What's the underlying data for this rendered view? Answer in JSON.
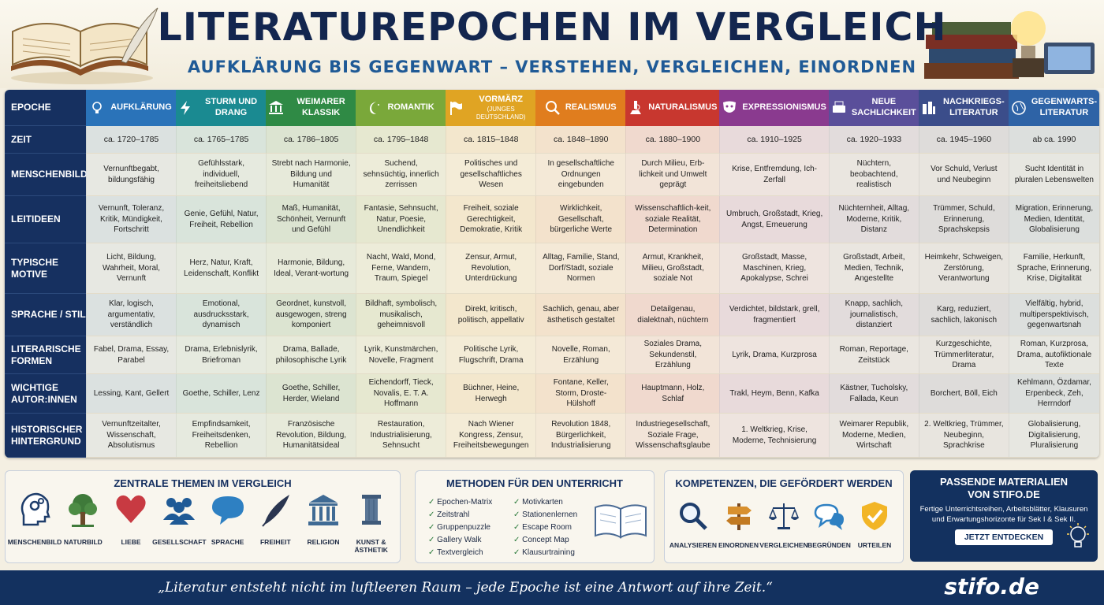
{
  "header": {
    "title": "Literaturepochen im Vergleich",
    "subtitle": "Aufklärung bis Gegenwart – verstehen, vergleichen, einordnen"
  },
  "table": {
    "corner": "Epoche",
    "epochs": [
      {
        "name": "Aufklärung",
        "color": "#2a73b9"
      },
      {
        "name": "Sturm und Drang",
        "color": "#1a8a91"
      },
      {
        "name": "Weimarer Klassik",
        "color": "#2f8a45"
      },
      {
        "name": "Romantik",
        "color": "#7aa83a"
      },
      {
        "name": "Vormärz",
        "sub": "(Junges Deutschland)",
        "color": "#e0a423"
      },
      {
        "name": "Realismus",
        "color": "#e07d1e"
      },
      {
        "name": "Naturalismus",
        "color": "#c8372f"
      },
      {
        "name": "Expressionismus",
        "color": "#8a3a8f"
      },
      {
        "name": "Neue Sachlichkeit",
        "color": "#5a4f9a"
      },
      {
        "name": "Nachkriegs-literatur",
        "color": "#3b4d8a"
      },
      {
        "name": "Gegenwarts-literatur",
        "color": "#2e63a6"
      }
    ],
    "rows": [
      {
        "label": "Zeit",
        "cells": [
          "ca. 1720–1785",
          "ca. 1765–1785",
          "ca. 1786–1805",
          "ca. 1795–1848",
          "ca. 1815–1848",
          "ca. 1848–1890",
          "ca. 1880–1900",
          "ca. 1910–1925",
          "ca. 1920–1933",
          "ca. 1945–1960",
          "ab ca. 1990"
        ]
      },
      {
        "label": "Menschenbild",
        "cells": [
          "Vernunftbegabt, bildungsfähig",
          "Gefühlsstark, individuell, freiheitsliebend",
          "Strebt nach Harmonie, Bildung und Humanität",
          "Suchend, sehnsüchtig, innerlich zerrissen",
          "Politisches und gesellschaftliches Wesen",
          "In gesellschaftliche Ordnungen eingebunden",
          "Durch Milieu, Erb-lichkeit und Umwelt geprägt",
          "Krise, Entfremdung, Ich-Zerfall",
          "Nüchtern, beobachtend, realistisch",
          "Vor Schuld, Verlust und Neubeginn",
          "Sucht Identität in pluralen Lebenswelten"
        ]
      },
      {
        "label": "Leitideen",
        "cells": [
          "Vernunft, Toleranz, Kritik, Mündigkeit, Fortschritt",
          "Genie, Gefühl, Natur, Freiheit, Rebellion",
          "Maß, Humanität, Schönheit, Vernunft und Gefühl",
          "Fantasie, Sehnsucht, Natur, Poesie, Unendlichkeit",
          "Freiheit, soziale Gerechtigkeit, Demokratie, Kritik",
          "Wirklichkeit, Gesellschaft, bürgerliche Werte",
          "Wissenschaftlich-keit, soziale Realität, Determination",
          "Umbruch, Großstadt, Krieg, Angst, Erneuerung",
          "Nüchternheit, Alltag, Moderne, Kritik, Distanz",
          "Trümmer, Schuld, Erinnerung, Sprachskepsis",
          "Migration, Erinnerung, Medien, Identität, Globalisierung"
        ]
      },
      {
        "label": "Typische Motive",
        "cells": [
          "Licht, Bildung, Wahrheit, Moral, Vernunft",
          "Herz, Natur, Kraft, Leidenschaft, Konflikt",
          "Harmonie, Bildung, Ideal, Verant-wortung",
          "Nacht, Wald, Mond, Ferne, Wandern, Traum, Spiegel",
          "Zensur, Armut, Revolution, Unterdrückung",
          "Alltag, Familie, Stand, Dorf/Stadt, soziale Normen",
          "Armut, Krankheit, Milieu, Großstadt, soziale Not",
          "Großstadt, Masse, Maschinen, Krieg, Apokalypse, Schrei",
          "Großstadt, Arbeit, Medien, Technik, Angestellte",
          "Heimkehr, Schweigen, Zerstörung, Verantwortung",
          "Familie, Herkunft, Sprache, Erinnerung, Krise, Digitalität"
        ]
      },
      {
        "label": "Sprache / Stil",
        "cells": [
          "Klar, logisch, argumentativ, verständlich",
          "Emotional, ausdrucksstark, dynamisch",
          "Geordnet, kunstvoll, ausgewogen, streng komponiert",
          "Bildhaft, symbolisch, musikalisch, geheimnisvoll",
          "Direkt, kritisch, politisch, appellativ",
          "Sachlich, genau, aber ästhetisch gestaltet",
          "Detailgenau, dialektnah, nüchtern",
          "Verdichtet, bildstark, grell, fragmentiert",
          "Knapp, sachlich, journalistisch, distanziert",
          "Karg, reduziert, sachlich, lakonisch",
          "Vielfältig, hybrid, multiperspektivisch, gegenwartsnah"
        ]
      },
      {
        "label": "Literarische Formen",
        "cells": [
          "Fabel, Drama, Essay, Parabel",
          "Drama, Erlebnislyrik, Briefroman",
          "Drama, Ballade, philosophische Lyrik",
          "Lyrik, Kunstmärchen, Novelle, Fragment",
          "Politische Lyrik, Flugschrift, Drama",
          "Novelle, Roman, Erzählung",
          "Soziales Drama, Sekundenstil, Erzählung",
          "Lyrik, Drama, Kurzprosa",
          "Roman, Reportage, Zeitstück",
          "Kurzgeschichte, Trümmerliteratur, Drama",
          "Roman, Kurzprosa, Drama, autofiktionale Texte"
        ]
      },
      {
        "label": "Wichtige Autor:innen",
        "cells": [
          "Lessing, Kant, Gellert",
          "Goethe, Schiller, Lenz",
          "Goethe, Schiller, Herder, Wieland",
          "Eichendorff, Tieck, Novalis, E. T. A. Hoffmann",
          "Büchner, Heine, Herwegh",
          "Fontane, Keller, Storm, Droste-Hülshoff",
          "Hauptmann, Holz, Schlaf",
          "Trakl, Heym, Benn, Kafka",
          "Kästner, Tucholsky, Fallada, Keun",
          "Borchert, Böll, Eich",
          "Kehlmann, Özdamar, Erpenbeck, Zeh, Herrndorf"
        ]
      },
      {
        "label": "Historischer Hintergrund",
        "cells": [
          "Vernunftzeitalter, Wissenschaft, Absolutismus",
          "Empfindsamkeit, Freiheitsdenken, Rebellion",
          "Französische Revolution, Bildung, Humanitätsideal",
          "Restauration, Industrialisierung, Sehnsucht",
          "Nach Wiener Kongress, Zensur, Freiheitsbewegungen",
          "Revolution 1848, Bürgerlichkeit, Industrialisierung",
          "Industriegesellschaft, Soziale Frage, Wissenschaftsglaube",
          "1. Weltkrieg, Krise, Moderne, Technisierung",
          "Weimarer Republik, Moderne, Medien, Wirtschaft",
          "2. Weltkrieg, Trümmer, Neubeginn, Sprachkrise",
          "Globalisierung, Digitalisierung, Pluralisierung"
        ]
      }
    ]
  },
  "themes": {
    "title": "Zentrale Themen im Vergleich",
    "items": [
      {
        "label": "Menschenbild",
        "icon": "head-gears-icon"
      },
      {
        "label": "Naturbild",
        "icon": "tree-icon"
      },
      {
        "label": "Liebe",
        "icon": "heart-icon"
      },
      {
        "label": "Gesellschaft",
        "icon": "people-icon"
      },
      {
        "label": "Sprache",
        "icon": "speech-bubble-icon"
      },
      {
        "label": "Freiheit",
        "icon": "quill-icon"
      },
      {
        "label": "Religion",
        "icon": "temple-icon"
      },
      {
        "label": "Kunst & Ästhetik",
        "icon": "column-icon"
      }
    ]
  },
  "methods": {
    "title": "Methoden für den Unterricht",
    "col1": [
      "Epochen-Matrix",
      "Zeitstrahl",
      "Gruppenpuzzle",
      "Gallery Walk",
      "Textvergleich"
    ],
    "col2": [
      "Motivkarten",
      "Stationenlernen",
      "Escape Room",
      "Concept Map",
      "Klausurtraining"
    ]
  },
  "competences": {
    "title": "Kompetenzen, die gefördert werden",
    "items": [
      {
        "label": "Analysieren",
        "icon": "magnifier-icon"
      },
      {
        "label": "Einordnen",
        "icon": "signpost-icon"
      },
      {
        "label": "Vergleichen",
        "icon": "scales-icon"
      },
      {
        "label": "Begründen",
        "icon": "speech-bubbles-icon"
      },
      {
        "label": "Urteilen",
        "icon": "shield-check-icon"
      }
    ]
  },
  "cta": {
    "title": "Passende Materialien von stifo.de",
    "text": "Fertige Unterrichtsreihen, Arbeitsblätter, Klausuren und Erwartungshorizonte für Sek I & Sek II.",
    "button": "Jetzt entdecken"
  },
  "footer": {
    "quote": "„Literatur entsteht nicht im luftleeren Raum – jede Epoche ist eine Antwort auf ihre Zeit.“",
    "logo": "stifo.de"
  }
}
